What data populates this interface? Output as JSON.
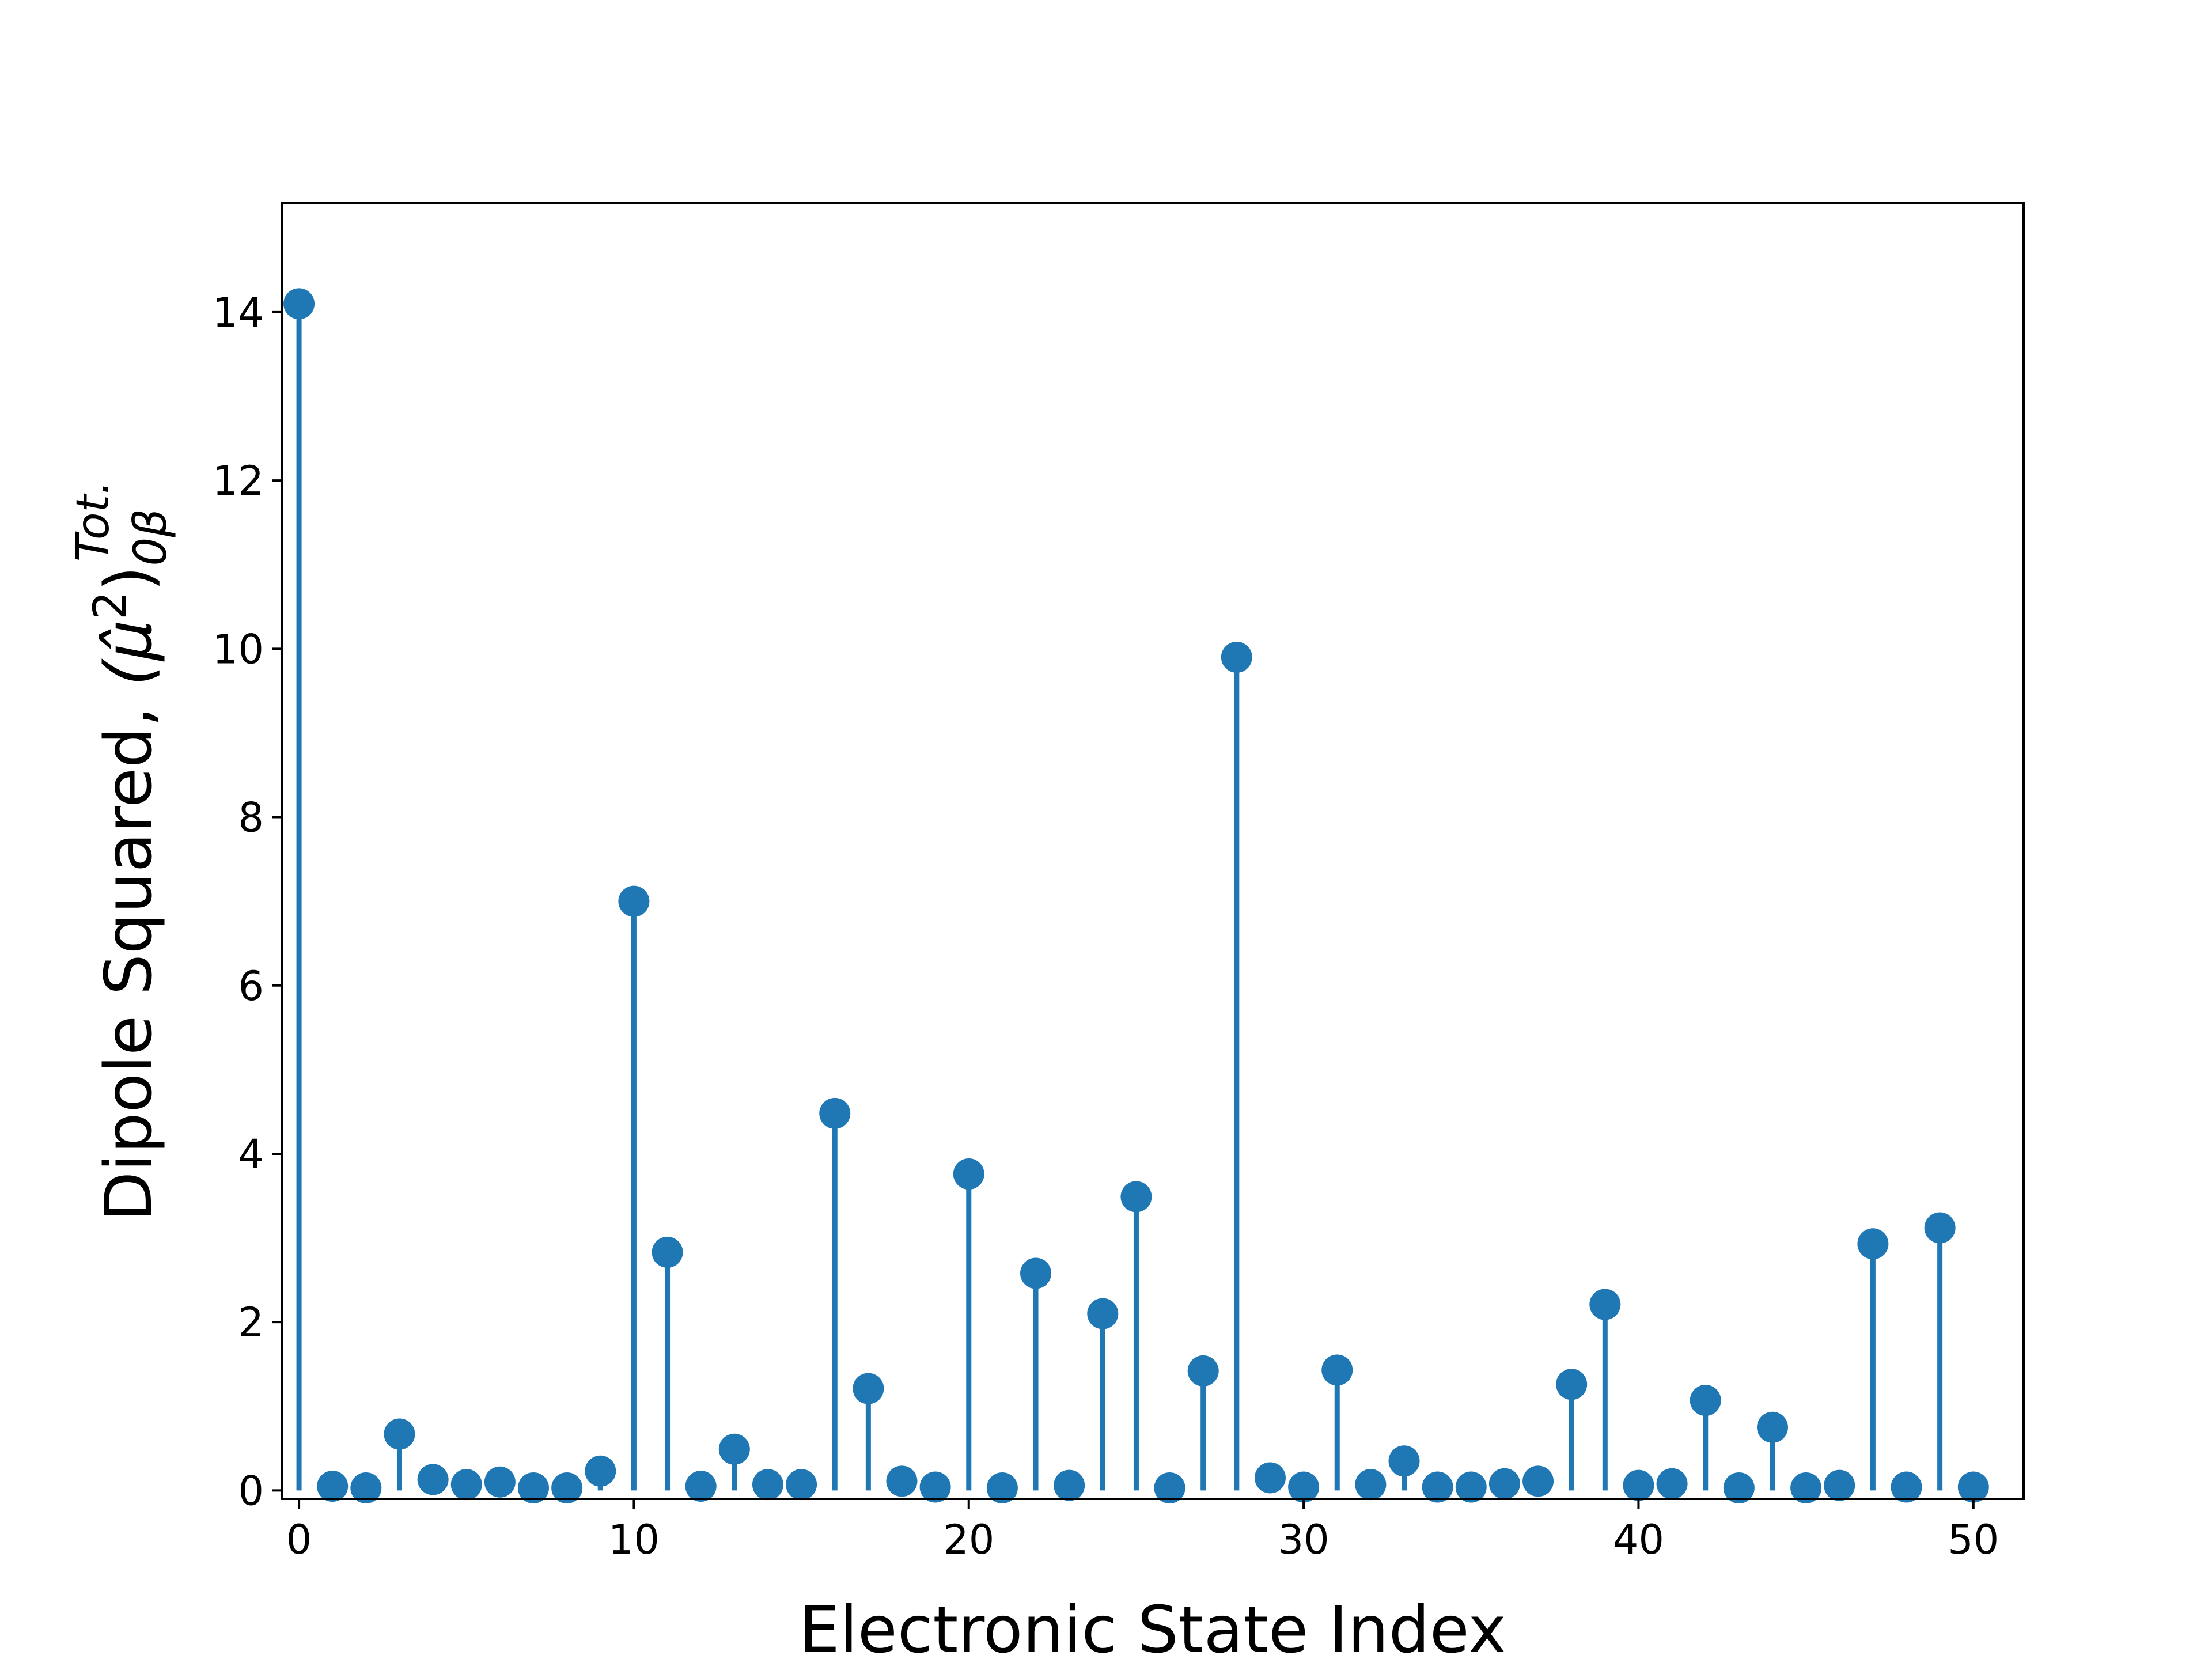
{
  "chart_data": {
    "type": "stem",
    "xlabel": "Electronic State Index",
    "ylabel": {
      "text": "Dipole Squared, ",
      "math": "(μ̂",
      "math_sup2": "2",
      "math_close": ")",
      "sub": "0β",
      "sup": "Tot."
    },
    "xlim": [
      -0.5,
      51.5
    ],
    "ylim": [
      -0.1,
      15.3
    ],
    "xticks": [
      0,
      10,
      20,
      30,
      40,
      50
    ],
    "yticks": [
      0,
      2,
      4,
      6,
      8,
      10,
      12,
      14
    ],
    "grid": false,
    "color": "#1f77b4",
    "x": [
      0,
      1,
      2,
      3,
      4,
      5,
      6,
      7,
      8,
      9,
      10,
      11,
      12,
      13,
      14,
      15,
      16,
      17,
      18,
      19,
      20,
      21,
      22,
      23,
      24,
      25,
      26,
      27,
      28,
      29,
      30,
      31,
      32,
      33,
      34,
      35,
      36,
      37,
      38,
      39,
      40,
      41,
      42,
      43,
      44,
      45,
      46,
      47,
      48,
      49,
      50
    ],
    "values": [
      14.1,
      0.05,
      0.03,
      0.67,
      0.13,
      0.07,
      0.1,
      0.03,
      0.03,
      0.23,
      7.0,
      2.83,
      0.05,
      0.49,
      0.07,
      0.07,
      4.48,
      1.21,
      0.11,
      0.04,
      3.76,
      0.03,
      2.58,
      0.06,
      2.1,
      3.49,
      0.03,
      1.42,
      9.9,
      0.15,
      0.04,
      1.43,
      0.07,
      0.35,
      0.04,
      0.04,
      0.08,
      0.11,
      1.26,
      2.21,
      0.06,
      0.08,
      1.07,
      0.03,
      0.75,
      0.03,
      0.06,
      2.93,
      0.04,
      3.12,
      0.04
    ]
  }
}
